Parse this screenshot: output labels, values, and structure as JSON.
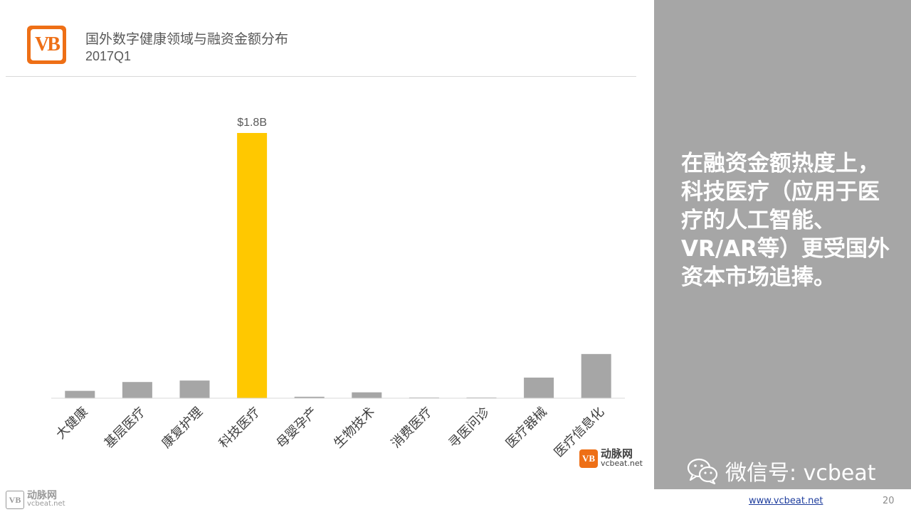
{
  "header": {
    "logo_text": "VB",
    "title": "国外数字健康领域与融资金额分布",
    "subtitle": "2017Q1"
  },
  "chart_data": {
    "type": "bar",
    "categories": [
      "大健康",
      "基层医疗",
      "康复护理",
      "科技医疗",
      "母婴孕产",
      "生物技术",
      "消费医疗",
      "寻医问诊",
      "医疗器械",
      "医疗信息化"
    ],
    "values": [
      0.05,
      0.11,
      0.12,
      1.8,
      0.01,
      0.04,
      0.005,
      0.005,
      0.14,
      0.3
    ],
    "value_unit": "B USD",
    "highlight_index": 3,
    "data_labels": [
      {
        "index": 3,
        "text": "$1.8B"
      }
    ],
    "colors": {
      "bar": "#a6a6a6",
      "highlight": "#ffc800",
      "axis": "#d9d9d9",
      "label": "#595959"
    },
    "ylim": [
      0,
      1.8
    ],
    "grid": false,
    "title": "",
    "xlabel": "",
    "ylabel": ""
  },
  "panel": {
    "text": "在融资金额热度上，科技医疗（应用于医疗的人工智能、VR/AR等）更受国外资本市场追捧。",
    "wechat_label": "微信号: vcbeat"
  },
  "brand": {
    "logo_text": "VB",
    "name_cn": "动脉网",
    "name_en": "vcbeat.net"
  },
  "footer": {
    "logo_text": "VB",
    "name_cn": "动脉网",
    "name_en": "vcbeat.net",
    "website": "www.vcbeat.net",
    "page_number": "20"
  }
}
